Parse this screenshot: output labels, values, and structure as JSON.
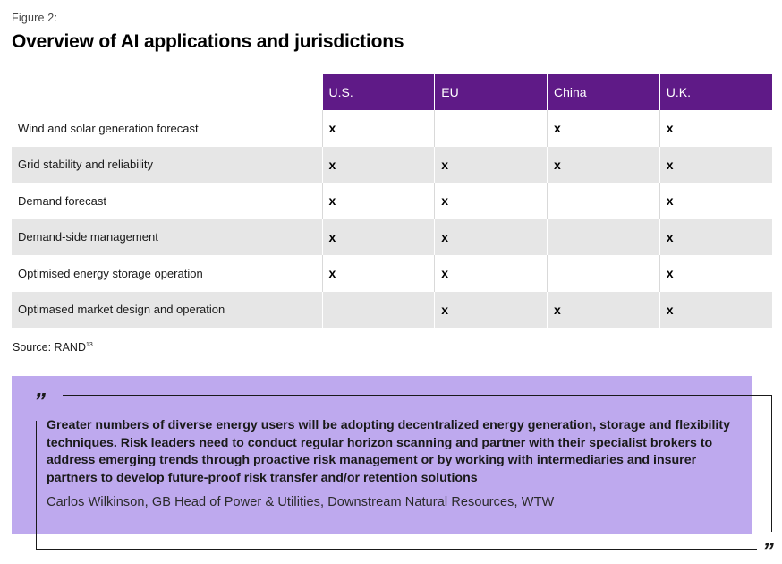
{
  "figure": {
    "label": "Figure 2:",
    "title": "Overview of AI applications and jurisdictions"
  },
  "table": {
    "columns": [
      "U.S.",
      "EU",
      "China",
      "U.K."
    ],
    "rows": [
      {
        "label": "Wind and solar generation forecast",
        "marks": [
          "x",
          "",
          "x",
          "x"
        ]
      },
      {
        "label": "Grid stability and reliability",
        "marks": [
          "x",
          "x",
          "x",
          "x"
        ]
      },
      {
        "label": "Demand forecast",
        "marks": [
          "x",
          "x",
          "",
          "x"
        ]
      },
      {
        "label": "Demand-side management",
        "marks": [
          "x",
          "x",
          "",
          "x"
        ]
      },
      {
        "label": "Optimised energy storage operation",
        "marks": [
          "x",
          "x",
          "",
          "x"
        ]
      },
      {
        "label": "Optimased market design and operation",
        "marks": [
          "",
          "x",
          "x",
          "x"
        ]
      }
    ]
  },
  "source": {
    "text": "Source: RAND",
    "footnote": "13"
  },
  "quote": {
    "open_mark": "”",
    "close_mark": "”",
    "text": "Greater numbers of diverse energy users will be adopting decentralized energy generation, storage and flexibility techniques. Risk leaders need to conduct regular horizon scanning and partner with their specialist brokers to address emerging trends through proactive risk management or by working with intermediaries and insurer partners to develop future-proof risk transfer and/or retention solutions",
    "attribution": "Carlos Wilkinson, GB Head of Power & Utilities, Downstream Natural Resources, WTW"
  },
  "colors": {
    "header_purple": "#5f1a87",
    "quote_lavender": "#bea9ee",
    "row_shade": "#e6e6e6"
  }
}
